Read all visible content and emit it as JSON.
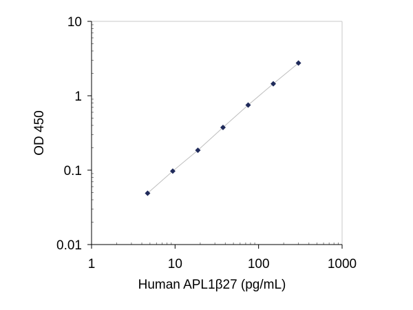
{
  "chart_data": {
    "type": "scatter",
    "title": "",
    "xlabel": "Human APL1β27 (pg/mL)",
    "ylabel": "OD 450",
    "x_scale": "log",
    "y_scale": "log",
    "xlim": [
      1,
      1000
    ],
    "ylim": [
      0.01,
      10
    ],
    "x_ticks": [
      {
        "value": 1,
        "label": "1"
      },
      {
        "value": 10,
        "label": "10"
      },
      {
        "value": 100,
        "label": "100"
      },
      {
        "value": 1000,
        "label": "1000"
      }
    ],
    "y_ticks": [
      {
        "value": 10,
        "label": "10"
      },
      {
        "value": 1,
        "label": "1"
      },
      {
        "value": 0.1,
        "label": "0.1"
      },
      {
        "value": 0.01,
        "label": "0.01"
      }
    ],
    "grid": false,
    "legend": "none",
    "series": [
      {
        "x": [
          4.69,
          9.38,
          18.75,
          37.5,
          75,
          150,
          300
        ],
        "y": [
          0.049,
          0.097,
          0.185,
          0.375,
          0.75,
          1.45,
          2.75
        ],
        "marker": "diamond",
        "marker_color": "#1f2a5a",
        "line": true,
        "line_color": "#bdbdbd"
      }
    ],
    "colors": {
      "axes": "#000000",
      "plot_frame": "#c8c8c8",
      "background": "#ffffff"
    }
  }
}
